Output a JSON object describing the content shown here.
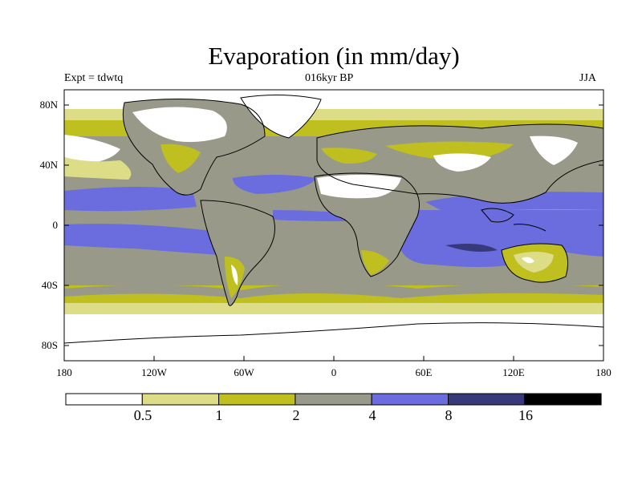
{
  "title": "Evaporation (in mm/day)",
  "left_label": "Expt = tdwtq",
  "center_label": "016kyr BP",
  "right_label": "JJA",
  "y_ticks": [
    "80N",
    "40N",
    "0",
    "40S",
    "80S"
  ],
  "x_ticks": [
    "180",
    "120W",
    "60W",
    "0",
    "60E",
    "120E",
    "180"
  ],
  "colorbar": {
    "colors": [
      "#ffffff",
      "#dedd87",
      "#bfbf1f",
      "#999989",
      "#6b6cde",
      "#38397a",
      "#000000"
    ],
    "labels": [
      "0.5",
      "1",
      "2",
      "4",
      "8",
      "16"
    ]
  },
  "chart_data": {
    "type": "heatmap",
    "title": "Evaporation (in mm/day)",
    "experiment": "tdwtq",
    "period": "016kyr BP",
    "season": "JJA",
    "x_range": [
      -180,
      180
    ],
    "y_range": [
      -90,
      90
    ],
    "levels": [
      0.5,
      1,
      2,
      4,
      8,
      16
    ],
    "units": "mm/day"
  }
}
